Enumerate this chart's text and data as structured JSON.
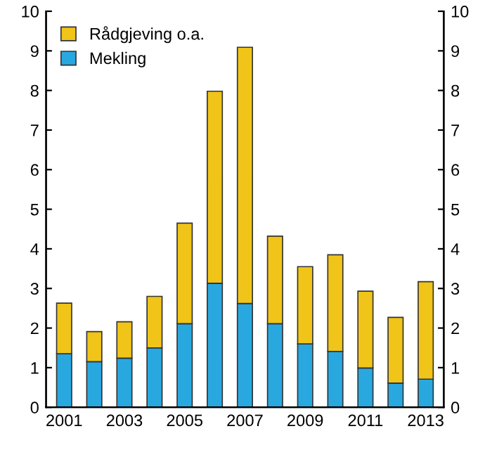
{
  "chart_data": {
    "type": "bar",
    "stacked": true,
    "categories": [
      "2001",
      null,
      "2003",
      null,
      "2005",
      null,
      "2007",
      null,
      "2009",
      null,
      "2011",
      null,
      "2013"
    ],
    "series": [
      {
        "name": "Mekling",
        "color": "#29a8e0",
        "values": [
          1.35,
          1.15,
          1.24,
          1.5,
          2.11,
          3.13,
          2.62,
          2.11,
          1.6,
          1.41,
          0.99,
          0.61,
          0.71
        ]
      },
      {
        "name": "Rådgjeving o.a.",
        "color": "#f0c419",
        "values": [
          1.28,
          0.76,
          0.92,
          1.3,
          2.54,
          4.85,
          6.47,
          2.21,
          1.95,
          2.44,
          1.94,
          1.66,
          2.46
        ]
      }
    ],
    "ylim": [
      0,
      10
    ],
    "yticks": [
      0,
      1,
      2,
      3,
      4,
      5,
      6,
      7,
      8,
      9,
      10
    ],
    "y2lim": [
      0,
      10
    ],
    "y2ticks": [
      0,
      1,
      2,
      3,
      4,
      5,
      6,
      7,
      8,
      9,
      10
    ],
    "grid": false,
    "legend": "top left"
  }
}
